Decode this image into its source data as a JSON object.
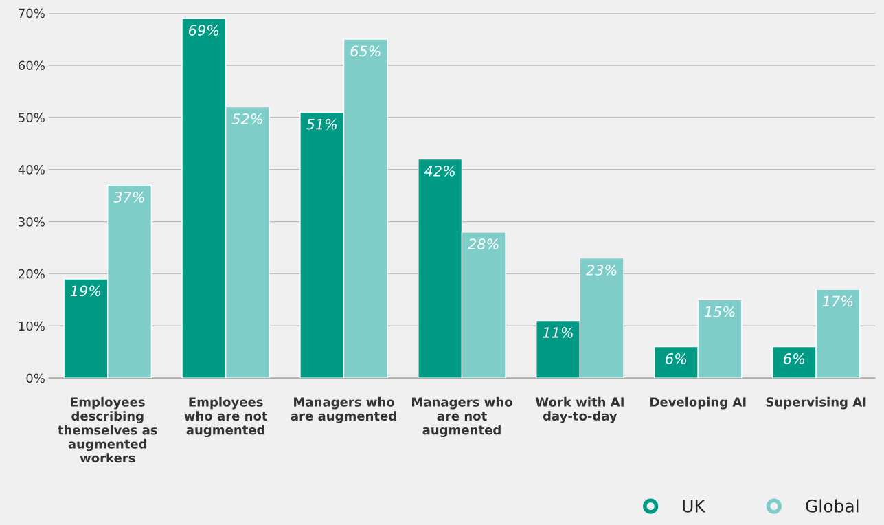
{
  "chart_data": {
    "type": "bar",
    "categories": [
      "Employees\ndescribing\nthemselves as\naugmented\nworkers",
      "Employees\nwho are not\naugmented",
      "Managers who\nare augmented",
      "Managers who\nare not\naugmented",
      "Work with AI\nday-to-day",
      "Developing AI",
      "Supervising AI"
    ],
    "series": [
      {
        "name": "UK",
        "color": "#009a85",
        "values": [
          19,
          69,
          51,
          42,
          11,
          6,
          6
        ]
      },
      {
        "name": "Global",
        "color": "#7fcdc8",
        "values": [
          37,
          52,
          65,
          28,
          23,
          15,
          17
        ]
      }
    ],
    "ylim": [
      0,
      70
    ],
    "yticks": [
      {
        "value": 0,
        "label": "0%"
      },
      {
        "value": 10,
        "label": "10%"
      },
      {
        "value": 20,
        "label": "20%"
      },
      {
        "value": 30,
        "label": "30%"
      },
      {
        "value": 40,
        "label": "40%"
      },
      {
        "value": 50,
        "label": "50%"
      },
      {
        "value": 60,
        "label": "60%"
      },
      {
        "value": 70,
        "label": "70%"
      }
    ],
    "value_labels": [
      [
        "19%",
        "69%",
        "51%",
        "42%",
        "11%",
        "6%",
        "6%"
      ],
      [
        "37%",
        "52%",
        "65%",
        "28%",
        "23%",
        "15%",
        "17%"
      ]
    ],
    "grid": "y",
    "legend": "bottom right"
  }
}
